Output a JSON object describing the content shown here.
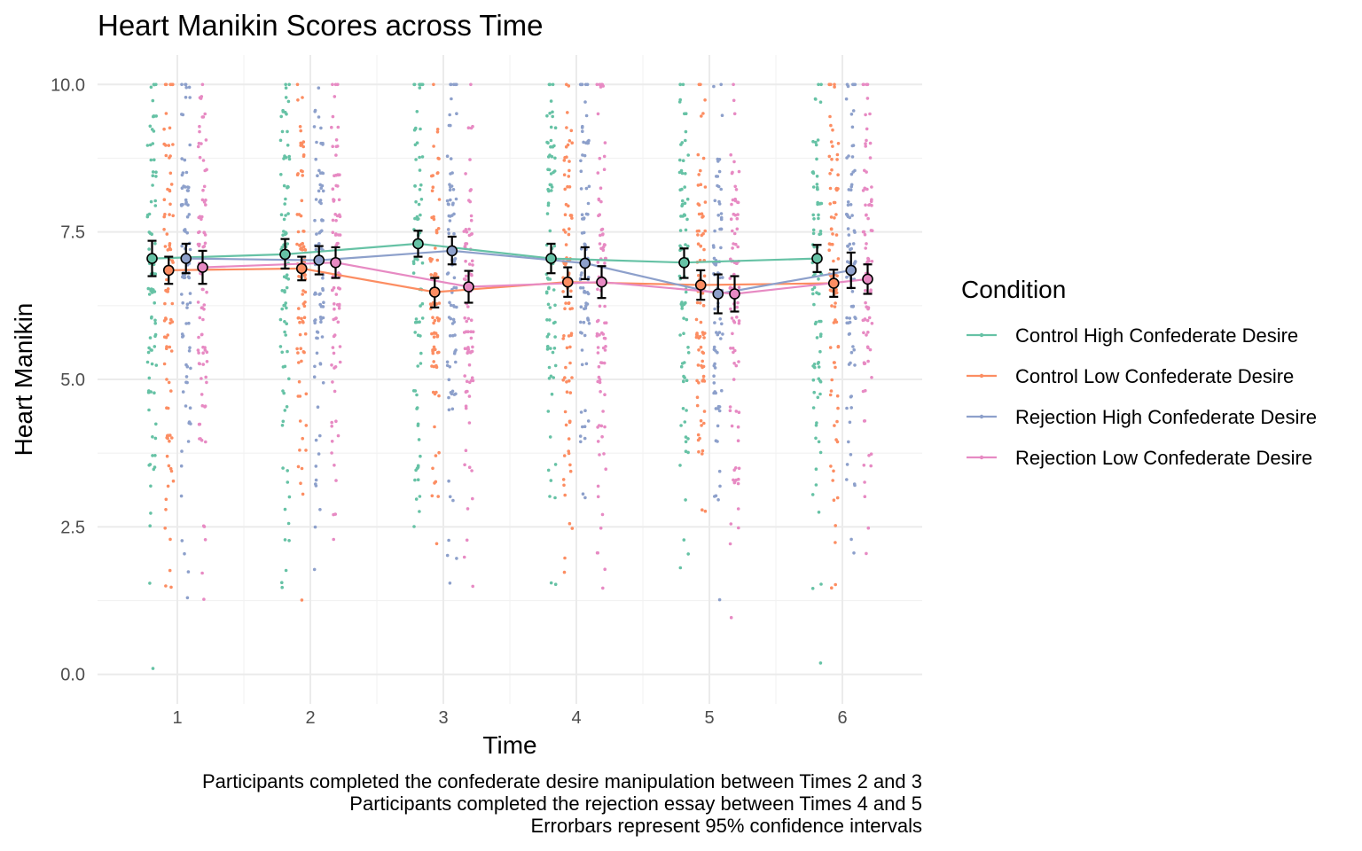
{
  "chart_data": {
    "type": "line",
    "title": "Heart Manikin Scores across Time",
    "xlabel": "Time",
    "ylabel": "Heart Manikin",
    "x": [
      1,
      2,
      3,
      4,
      5,
      6
    ],
    "x_tick_labels": [
      "1",
      "2",
      "3",
      "4",
      "5",
      "6"
    ],
    "y_ticks": [
      0.0,
      2.5,
      5.0,
      7.5,
      10.0
    ],
    "y_tick_labels": [
      "0.0",
      "2.5",
      "5.0",
      "7.5",
      "10.0"
    ],
    "xlim": [
      0.4,
      6.6
    ],
    "ylim": [
      -0.5,
      10.5
    ],
    "grid": true,
    "legend_title": "Condition",
    "legend_position": "right",
    "raw_points_jittered": true,
    "series": [
      {
        "name": "Control High Confederate Desire",
        "color": "#66c2a5",
        "means": [
          7.05,
          7.12,
          7.3,
          7.05,
          6.98,
          7.05
        ],
        "ci_low": [
          6.75,
          6.88,
          7.08,
          6.8,
          6.72,
          6.82
        ],
        "ci_high": [
          7.35,
          7.38,
          7.52,
          7.3,
          7.22,
          7.28
        ]
      },
      {
        "name": "Control Low Confederate Desire",
        "color": "#fc8d62",
        "means": [
          6.85,
          6.88,
          6.48,
          6.65,
          6.6,
          6.63
        ],
        "ci_low": [
          6.62,
          6.68,
          6.22,
          6.4,
          6.35,
          6.4
        ],
        "ci_high": [
          7.08,
          7.08,
          6.72,
          6.9,
          6.85,
          6.86
        ]
      },
      {
        "name": "Rejection High Confederate Desire",
        "color": "#8da0cb",
        "means": [
          7.05,
          7.02,
          7.18,
          6.97,
          6.45,
          6.85
        ],
        "ci_low": [
          6.8,
          6.78,
          6.95,
          6.7,
          6.12,
          6.55
        ],
        "ci_high": [
          7.3,
          7.26,
          7.42,
          7.24,
          6.78,
          7.15
        ]
      },
      {
        "name": "Rejection Low Confederate Desire",
        "color": "#e78ac3",
        "means": [
          6.9,
          6.98,
          6.57,
          6.65,
          6.45,
          6.7
        ],
        "ci_low": [
          6.62,
          6.72,
          6.3,
          6.38,
          6.15,
          6.45
        ],
        "ci_high": [
          7.18,
          7.24,
          6.84,
          6.92,
          6.75,
          6.95
        ]
      }
    ],
    "annotations": [
      "Participants completed the confederate desire manipulation between Times 2 and 3",
      "Participants completed the rejection essay between Times 4 and 5",
      "Errorbars represent 95% confidence intervals"
    ]
  }
}
